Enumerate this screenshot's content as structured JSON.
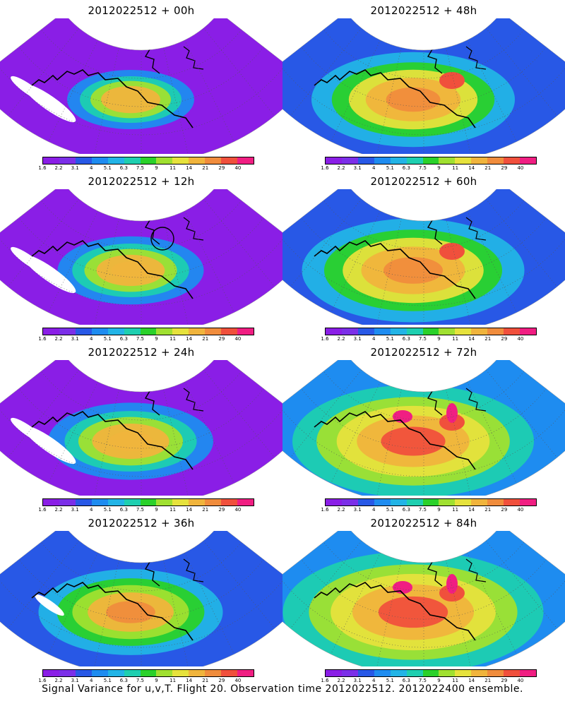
{
  "panels": [
    {
      "title": "2012022512 + 00h",
      "level": 0
    },
    {
      "title": "2012022512 + 48h",
      "level": 4
    },
    {
      "title": "2012022512 + 12h",
      "level": 1
    },
    {
      "title": "2012022512 + 60h",
      "level": 5
    },
    {
      "title": "2012022512 + 24h",
      "level": 2
    },
    {
      "title": "2012022512 + 72h",
      "level": 6
    },
    {
      "title": "2012022512 + 36h",
      "level": 3
    },
    {
      "title": "2012022512 + 84h",
      "level": 7
    }
  ],
  "colorbar": {
    "labels": [
      "1.6",
      "2.2",
      "3.1",
      "4",
      "5.1",
      "6.3",
      "7.5",
      "9",
      "11",
      "14",
      "21",
      "29",
      "40"
    ],
    "colors": [
      "#8a1ee6",
      "#7b2fe8",
      "#2858e6",
      "#1e8cf0",
      "#22b4e6",
      "#1ecfb0",
      "#2ad12a",
      "#a0e030",
      "#e6e23c",
      "#f0b43c",
      "#f08c3c",
      "#f0503c",
      "#f01e82"
    ]
  },
  "caption": "Signal Variance for u,v,T. Flight 20. Observation time 2012022512. 2012022400 ensemble."
}
